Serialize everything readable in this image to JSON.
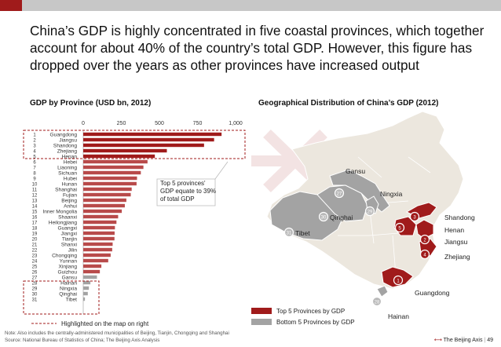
{
  "headline": {
    "line1": "China’s GDP is highly concentrated in five coastal provinces, which together",
    "line2": "account for about 40% of the country’s total GDP. However, this figure has",
    "line3": "dropped over the years as other provinces have increased output"
  },
  "left_title": "GDP by Province (USD bn, 2012)",
  "right_title": "Geographical Distribution of China’s GDP (2012)",
  "callout": {
    "line1": "Top 5 provinces'",
    "line2": "GDP equate to 39%",
    "line3": "of total GDP"
  },
  "highlight_note": "Highlighted on the map on right",
  "legend": {
    "top5": "Top 5 Provinces by GDP",
    "bottom5": "Bottom 5 Provinces by GDP"
  },
  "map_labels": [
    {
      "rank": "1",
      "name": "Guangdong"
    },
    {
      "rank": "2",
      "name": "Jiangsu"
    },
    {
      "rank": "3",
      "name": "Shandong"
    },
    {
      "rank": "4",
      "name": "Zhejiang"
    },
    {
      "rank": "5",
      "name": "Henan"
    },
    {
      "rank": "27",
      "name": "Gansu"
    },
    {
      "rank": "28",
      "name": "Hainan"
    },
    {
      "rank": "29",
      "name": "Ningxia"
    },
    {
      "rank": "30",
      "name": "Qinghai"
    },
    {
      "rank": "31",
      "name": "Tibet"
    }
  ],
  "colors": {
    "top5": "#a01b1b",
    "bottom5": "#a3a3a3",
    "other": "#ece7de",
    "accent": "#a01b1b"
  },
  "footnote": {
    "note": "Note: Also includes the centrally-administered municipalities of Beijing, Tianjin, Chongqing and Shanghai",
    "source": "Source: National Bureau of Statistics of China; The Beijing Axis Analysis"
  },
  "brand": {
    "name": "The Beijing Axis",
    "page": "49"
  },
  "chart_data": {
    "type": "bar",
    "orientation": "horizontal",
    "title": "GDP by Province (USD bn, 2012)",
    "xlim": [
      0,
      1000
    ],
    "xticks": [
      0,
      250,
      500,
      750,
      1000
    ],
    "xtick_labels": [
      "0",
      "250",
      "500",
      "750",
      "1,000"
    ],
    "ranks": [
      "1",
      "2",
      "3",
      "4",
      "5",
      "6",
      "7",
      "8",
      "9",
      "10",
      "11",
      "12",
      "13",
      "14",
      "15",
      "16",
      "17",
      "18",
      "19",
      "20",
      "21",
      "22",
      "23",
      "24",
      "25",
      "26",
      "27",
      "28",
      "29",
      "30",
      "31"
    ],
    "categories": [
      "Guangdong",
      "Jiangsu",
      "Shandong",
      "Zhejiang",
      "Henan",
      "Hebei",
      "Liaoning",
      "Sichuan",
      "Hubei",
      "Hunan",
      "Shanghai",
      "Fujian",
      "Beijing",
      "Anhui",
      "Inner Mongolia",
      "Shaanxi",
      "Heilongjiang",
      "Guangxi",
      "Jiangxi",
      "Tianjin",
      "Shanxi",
      "Jilin",
      "Chongqing",
      "Yunnan",
      "Xinjiang",
      "Guizhou",
      "Gansu",
      "Hainan",
      "Ningxia",
      "Qinghai",
      "Tibet"
    ],
    "values": [
      908,
      859,
      793,
      549,
      470,
      422,
      395,
      378,
      353,
      350,
      318,
      312,
      283,
      273,
      253,
      229,
      218,
      208,
      206,
      205,
      193,
      190,
      180,
      164,
      119,
      109,
      90,
      47,
      37,
      30,
      11
    ],
    "highlight_top5": "Top 5",
    "highlight_bottom5": "Bottom 5"
  }
}
